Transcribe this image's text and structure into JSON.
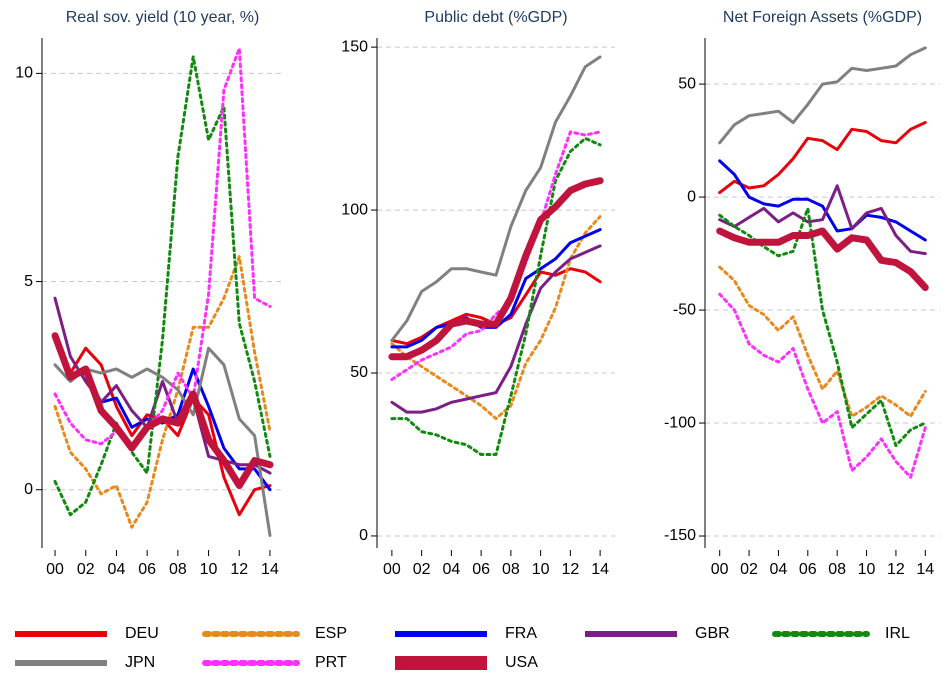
{
  "chart_data": [
    {
      "type": "line",
      "title": "Real sov. yield (10 year, %)",
      "x": [
        0,
        1,
        2,
        3,
        4,
        5,
        6,
        7,
        8,
        9,
        10,
        11,
        12,
        13,
        14
      ],
      "xlim": [
        -0.85,
        14.85
      ],
      "xticks": [
        {
          "value": 0,
          "label": "00"
        },
        {
          "value": 2,
          "label": "02"
        },
        {
          "value": 4,
          "label": "04"
        },
        {
          "value": 6,
          "label": "06"
        },
        {
          "value": 8,
          "label": "08"
        },
        {
          "value": 10,
          "label": "10"
        },
        {
          "value": 12,
          "label": "12"
        },
        {
          "value": 14,
          "label": "14"
        }
      ],
      "ylim": [
        -1.4,
        10.85
      ],
      "yticks": [
        0,
        5,
        10
      ],
      "grid": true,
      "series": [
        {
          "values": [
            3.7,
            2.8,
            3.4,
            3.0,
            2.0,
            1.3,
            1.8,
            1.7,
            1.3,
            2.2,
            1.8,
            0.3,
            -0.6,
            0.0,
            0.1
          ]
        },
        {
          "values": [
            2.0,
            0.9,
            0.5,
            -0.1,
            0.1,
            -0.9,
            -0.3,
            1.2,
            2.4,
            3.9,
            3.9,
            4.6,
            5.6,
            3.3,
            1.4
          ]
        },
        {
          "values": [
            3.6,
            2.7,
            2.8,
            2.1,
            2.2,
            1.5,
            1.7,
            1.6,
            1.8,
            2.9,
            2.0,
            1.0,
            0.5,
            0.5,
            0.0
          ]
        },
        {
          "values": [
            4.6,
            3.2,
            2.6,
            2.1,
            2.5,
            1.9,
            1.5,
            2.6,
            1.6,
            2.2,
            0.8,
            0.7,
            0.6,
            0.6,
            0.4
          ]
        },
        {
          "values": [
            0.2,
            -0.6,
            -0.3,
            0.6,
            1.6,
            0.9,
            0.4,
            3.6,
            8.0,
            10.4,
            8.4,
            9.2,
            4.0,
            2.6,
            0.8
          ]
        },
        {
          "values": [
            3.0,
            2.6,
            2.9,
            2.8,
            2.9,
            2.7,
            2.9,
            2.7,
            2.4,
            1.8,
            3.4,
            3.0,
            1.7,
            1.3,
            -1.1
          ]
        },
        {
          "values": [
            2.3,
            1.6,
            1.2,
            1.1,
            1.4,
            1.0,
            1.5,
            1.9,
            2.8,
            2.2,
            4.7,
            9.6,
            10.6,
            4.6,
            4.4
          ]
        },
        {
          "values": [
            3.7,
            2.7,
            2.9,
            1.9,
            1.5,
            1.0,
            1.5,
            1.7,
            1.6,
            2.3,
            1.2,
            0.7,
            0.1,
            0.7,
            0.6
          ]
        }
      ]
    },
    {
      "type": "line",
      "title": "Public debt (%GDP)",
      "x": [
        0,
        1,
        2,
        3,
        4,
        5,
        6,
        7,
        8,
        9,
        10,
        11,
        12,
        13,
        14
      ],
      "xlim": [
        -1,
        15
      ],
      "xticks": [
        {
          "value": 0,
          "label": "00"
        },
        {
          "value": 2,
          "label": "02"
        },
        {
          "value": 4,
          "label": "04"
        },
        {
          "value": 6,
          "label": "06"
        },
        {
          "value": 8,
          "label": "08"
        },
        {
          "value": 10,
          "label": "10"
        },
        {
          "value": 12,
          "label": "12"
        },
        {
          "value": 14,
          "label": "14"
        }
      ],
      "ylim": [
        -3.7,
        152.8
      ],
      "yticks": [
        0,
        50,
        100,
        150
      ],
      "grid": true,
      "series": [
        {
          "values": [
            60,
            59,
            61,
            64,
            66,
            68,
            67,
            65,
            67,
            74,
            81,
            80,
            82,
            81,
            78
          ]
        },
        {
          "values": [
            59,
            55,
            52,
            49,
            46,
            43,
            40,
            36,
            40,
            53,
            60,
            70,
            85,
            93,
            98
          ]
        },
        {
          "values": [
            58,
            58,
            60,
            64,
            65,
            67,
            64,
            64,
            68,
            79,
            82,
            85,
            90,
            92,
            94
          ]
        },
        {
          "values": [
            41,
            38,
            38,
            39,
            41,
            42,
            43,
            44,
            52,
            65,
            76,
            81,
            85,
            87,
            89
          ]
        },
        {
          "values": [
            36,
            36,
            32,
            31,
            29,
            28,
            25,
            25,
            43,
            62,
            86,
            109,
            118,
            122,
            120
          ]
        },
        {
          "values": [
            60,
            66,
            75,
            78,
            82,
            82,
            81,
            80,
            95,
            106,
            113,
            127,
            135,
            144,
            147
          ]
        },
        {
          "values": [
            48,
            51,
            54,
            56,
            58,
            62,
            63,
            68,
            72,
            84,
            96,
            111,
            124,
            123,
            124
          ]
        },
        {
          "values": [
            55,
            55,
            57,
            60,
            65,
            66,
            65,
            65,
            73,
            86,
            97,
            101,
            106,
            108,
            109
          ]
        }
      ]
    },
    {
      "type": "line",
      "title": "Net Foreign Assets (%GDP)",
      "x": [
        0,
        1,
        2,
        3,
        4,
        5,
        6,
        7,
        8,
        9,
        10,
        11,
        12,
        13,
        14
      ],
      "xlim": [
        -1,
        15
      ],
      "xticks": [
        {
          "value": 0,
          "label": "00"
        },
        {
          "value": 2,
          "label": "02"
        },
        {
          "value": 4,
          "label": "04"
        },
        {
          "value": 6,
          "label": "06"
        },
        {
          "value": 8,
          "label": "08"
        },
        {
          "value": 10,
          "label": "10"
        },
        {
          "value": 12,
          "label": "12"
        },
        {
          "value": 14,
          "label": "14"
        }
      ],
      "ylim": [
        -155.3,
        70.4
      ],
      "yticks": [
        -150,
        -100,
        -50,
        0,
        50
      ],
      "grid": true,
      "series": [
        {
          "values": [
            2,
            7,
            4,
            5,
            10,
            17,
            26,
            25,
            21,
            30,
            29,
            25,
            24,
            30,
            33
          ]
        },
        {
          "values": [
            -31,
            -37,
            -48,
            -52,
            -59,
            -53,
            -70,
            -85,
            -77,
            -97,
            -93,
            -88,
            -92,
            -97,
            -86
          ]
        },
        {
          "values": [
            16,
            10,
            0,
            -3,
            -4,
            -1,
            -1,
            -4,
            -15,
            -14,
            -8,
            -9,
            -11,
            -15,
            -19
          ]
        },
        {
          "values": [
            -10,
            -13,
            -9,
            -5,
            -11,
            -7,
            -11,
            -10,
            5,
            -14,
            -7,
            -5,
            -17,
            -24,
            -25
          ]
        },
        {
          "values": [
            -8,
            -13,
            -17,
            -22,
            -26,
            -24,
            -5,
            -50,
            -73,
            -102,
            -96,
            -90,
            -110,
            -103,
            -100
          ]
        },
        {
          "values": [
            24,
            32,
            36,
            37,
            38,
            33,
            41,
            50,
            51,
            57,
            56,
            57,
            58,
            63,
            66
          ]
        },
        {
          "values": [
            -43,
            -50,
            -65,
            -70,
            -73,
            -67,
            -85,
            -100,
            -95,
            -121,
            -115,
            -107,
            -117,
            -124,
            -102
          ]
        },
        {
          "values": [
            -15,
            -18,
            -20,
            -20,
            -20,
            -17,
            -17,
            -15,
            -23,
            -18,
            -19,
            -28,
            -29,
            -33,
            -40
          ]
        }
      ]
    }
  ],
  "legend": [
    {
      "name": "DEU",
      "color": "#e8000b",
      "dash": "solid",
      "width": 3
    },
    {
      "name": "ESP",
      "color": "#e8891e",
      "dash": "dotted",
      "width": 3
    },
    {
      "name": "FRA",
      "color": "#0000f0",
      "dash": "solid",
      "width": 3
    },
    {
      "name": "GBR",
      "color": "#7b1f84",
      "dash": "solid",
      "width": 3
    },
    {
      "name": "IRL",
      "color": "#128a12",
      "dash": "dotted",
      "width": 3
    },
    {
      "name": "JPN",
      "color": "#808080",
      "dash": "solid",
      "width": 3
    },
    {
      "name": "PRT",
      "color": "#ff30ff",
      "dash": "dotted",
      "width": 3
    },
    {
      "name": "USA",
      "color": "#c0143c",
      "dash": "solid",
      "width": 7
    }
  ]
}
